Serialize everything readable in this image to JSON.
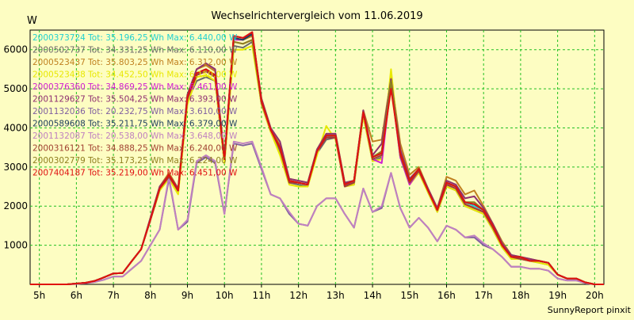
{
  "chart_data": {
    "type": "line",
    "title": "Wechselrichtervergleich vom 11.06.2019",
    "ylabel": "W",
    "footer": "SunnyReport pinxit",
    "x_ticks": [
      "5h",
      "6h",
      "7h",
      "8h",
      "9h",
      "10h",
      "11h",
      "12h",
      "13h",
      "14h",
      "15h",
      "16h",
      "17h",
      "18h",
      "19h",
      "20h"
    ],
    "y_ticks": [
      1000,
      2000,
      3000,
      4000,
      5000,
      6000
    ],
    "xlim": [
      4.75,
      20.25
    ],
    "ylim": [
      0,
      6500
    ],
    "grid": true,
    "legend": "top-left",
    "x": [
      4.75,
      5,
      5.25,
      5.5,
      5.75,
      6,
      6.25,
      6.5,
      6.75,
      7,
      7.25,
      7.5,
      7.75,
      8,
      8.25,
      8.5,
      8.75,
      9,
      9.25,
      9.5,
      9.75,
      10,
      10.25,
      10.5,
      10.75,
      11,
      11.25,
      11.5,
      11.75,
      12,
      12.25,
      12.5,
      12.75,
      13,
      13.25,
      13.5,
      13.75,
      14,
      14.25,
      14.5,
      14.75,
      15,
      15.25,
      15.5,
      15.75,
      16,
      16.25,
      16.5,
      16.75,
      17,
      17.25,
      17.5,
      17.75,
      18,
      18.25,
      18.5,
      18.75,
      19,
      19.25,
      19.5,
      19.75,
      20,
      20.25
    ],
    "series": [
      {
        "name": "2000373724 Tot: 35.196,25 Wh Max: 6.440,00 W",
        "color": "#22d0d0",
        "values": [
          0,
          0,
          0,
          0,
          0,
          20,
          40,
          90,
          180,
          280,
          290,
          600,
          900,
          1650,
          2450,
          2800,
          2400,
          4800,
          5400,
          5450,
          5300,
          3200,
          6300,
          6250,
          6400,
          4700,
          3950,
          3500,
          2650,
          2600,
          2550,
          3400,
          3750,
          3800,
          2550,
          2600,
          4400,
          3200,
          3300,
          5200,
          3300,
          2600,
          2950,
          2400,
          1900,
          2600,
          2500,
          2100,
          2000,
          1900,
          1500,
          1000,
          700,
          700,
          600,
          600,
          550,
          250,
          150,
          150,
          50,
          0,
          0
        ]
      },
      {
        "name": "2000502737 Tot: 34.331,25 Wh Max: 6.110,00 W",
        "color": "#6a6a6a",
        "values": [
          0,
          0,
          0,
          0,
          0,
          20,
          40,
          90,
          180,
          280,
          290,
          600,
          900,
          1650,
          2400,
          2750,
          2350,
          4700,
          5200,
          5300,
          5200,
          3100,
          6100,
          6050,
          6200,
          4600,
          3900,
          3400,
          2600,
          2550,
          2500,
          3350,
          3700,
          3750,
          2500,
          2550,
          4300,
          3150,
          3250,
          5100,
          3250,
          2550,
          2900,
          2350,
          1850,
          2500,
          2400,
          2000,
          1900,
          1800,
          1400,
          950,
          650,
          650,
          600,
          550,
          500,
          250,
          150,
          150,
          50,
          0,
          0
        ]
      },
      {
        "name": "2000523437 Tot: 35.803,25 Wh Max: 6.312,00 W",
        "color": "#c08020",
        "values": [
          0,
          0,
          0,
          0,
          0,
          20,
          40,
          90,
          180,
          280,
          290,
          600,
          900,
          1700,
          2500,
          2850,
          2450,
          4850,
          5500,
          5600,
          5450,
          3250,
          6300,
          6250,
          6350,
          4750,
          4000,
          3550,
          2700,
          2650,
          2600,
          3450,
          3850,
          3850,
          2600,
          2650,
          4450,
          3650,
          3700,
          5300,
          3600,
          2800,
          3000,
          2450,
          1950,
          2750,
          2650,
          2300,
          2400,
          2000,
          1550,
          1100,
          750,
          700,
          650,
          600,
          550,
          250,
          150,
          150,
          50,
          0,
          0
        ]
      },
      {
        "name": "2000523438 Tot: 34.452,50 Wh Max: 6.150,00 W",
        "color": "#e8e800",
        "values": [
          0,
          0,
          0,
          0,
          0,
          20,
          40,
          90,
          180,
          280,
          290,
          600,
          900,
          1650,
          2400,
          2700,
          2300,
          4600,
          5300,
          5350,
          5200,
          3100,
          6000,
          6000,
          6100,
          4600,
          3900,
          3300,
          2550,
          2500,
          2500,
          3300,
          4050,
          3700,
          2500,
          2550,
          4300,
          3150,
          3200,
          5500,
          3300,
          2550,
          2850,
          2350,
          1850,
          2500,
          2400,
          2000,
          1900,
          1800,
          1400,
          950,
          650,
          650,
          600,
          550,
          500,
          250,
          150,
          150,
          50,
          0,
          0
        ]
      },
      {
        "name": "2000376360 Tot: 34.869,25 Wh Max: 6.461,00 W",
        "color": "#d020d0",
        "values": [
          0,
          0,
          0,
          0,
          0,
          20,
          40,
          90,
          180,
          280,
          290,
          600,
          900,
          1650,
          2450,
          2750,
          2400,
          4750,
          5350,
          5450,
          5300,
          3200,
          6250,
          6250,
          6450,
          4650,
          3950,
          3450,
          2600,
          2600,
          2550,
          3400,
          3750,
          3750,
          2500,
          2600,
          4400,
          3200,
          3100,
          5150,
          3250,
          2550,
          2900,
          2400,
          1900,
          2550,
          2450,
          2050,
          1950,
          1850,
          1450,
          1000,
          700,
          650,
          600,
          600,
          550,
          250,
          150,
          150,
          50,
          0,
          0
        ]
      },
      {
        "name": "2001129627 Tot: 35.504,25 Wh Max: 6.393,00 W",
        "color": "#903070",
        "values": [
          0,
          0,
          0,
          0,
          0,
          20,
          40,
          90,
          180,
          280,
          290,
          600,
          900,
          1700,
          2500,
          2800,
          2450,
          4850,
          5500,
          5650,
          5500,
          3250,
          6350,
          6300,
          6400,
          4750,
          4000,
          3650,
          2700,
          2650,
          2600,
          3450,
          3850,
          3850,
          2600,
          2650,
          4450,
          3300,
          3600,
          5250,
          3450,
          2700,
          2950,
          2450,
          1950,
          2650,
          2550,
          2200,
          2250,
          1950,
          1550,
          1050,
          750,
          700,
          650,
          600,
          550,
          250,
          150,
          150,
          50,
          0,
          0
        ]
      },
      {
        "name": "2001132036 Tot: 20.232,75 Wh Max: 3.610,00 W",
        "color": "#8060a0",
        "values": [
          0,
          0,
          0,
          0,
          0,
          10,
          30,
          60,
          120,
          200,
          200,
          400,
          600,
          1000,
          1400,
          2700,
          1400,
          1600,
          3100,
          3250,
          3100,
          1800,
          3600,
          3550,
          3600,
          2950,
          2300,
          2200,
          1800,
          1550,
          1500,
          2000,
          2200,
          2200,
          1800,
          1450,
          2450,
          1850,
          1950,
          2850,
          1950,
          1450,
          1700,
          1450,
          1100,
          1500,
          1400,
          1200,
          1200,
          1000,
          900,
          700,
          450,
          450,
          400,
          400,
          350,
          150,
          100,
          100,
          30,
          0,
          0
        ]
      },
      {
        "name": "2000589608 Tot: 35.211,75 Wh Max: 6.379,00 W",
        "color": "#204060",
        "values": [
          0,
          0,
          0,
          0,
          0,
          20,
          40,
          90,
          180,
          280,
          290,
          600,
          900,
          1650,
          2450,
          2800,
          2400,
          4800,
          5400,
          5500,
          5350,
          3200,
          6300,
          6250,
          6400,
          4700,
          3950,
          3500,
          2650,
          2600,
          2550,
          3400,
          3800,
          3800,
          2550,
          2650,
          4400,
          3250,
          3400,
          5200,
          3350,
          2650,
          2950,
          2400,
          1900,
          2600,
          2500,
          2100,
          2050,
          1900,
          1500,
          1000,
          700,
          700,
          600,
          600,
          550,
          250,
          150,
          150,
          50,
          0,
          0
        ]
      },
      {
        "name": "2001132087 Tot: 20.538,00 Wh Max: 3.648,00 W",
        "color": "#c080c0",
        "values": [
          0,
          0,
          0,
          0,
          0,
          10,
          30,
          60,
          120,
          200,
          200,
          400,
          600,
          1000,
          1400,
          2750,
          1400,
          1650,
          3150,
          3300,
          3150,
          1800,
          3650,
          3600,
          3650,
          3000,
          2300,
          2200,
          1850,
          1550,
          1500,
          2000,
          2200,
          2200,
          1800,
          1450,
          2450,
          1850,
          2000,
          2850,
          1950,
          1450,
          1700,
          1450,
          1100,
          1500,
          1400,
          1200,
          1250,
          1050,
          900,
          700,
          450,
          450,
          400,
          400,
          350,
          150,
          100,
          100,
          30,
          0,
          0
        ]
      },
      {
        "name": "2000316121 Tot: 34.888,25 Wh Max: 6.240,00 W",
        "color": "#a04030",
        "values": [
          0,
          0,
          0,
          0,
          0,
          20,
          40,
          90,
          180,
          280,
          290,
          600,
          900,
          1650,
          2450,
          2750,
          2400,
          4750,
          5350,
          5450,
          5300,
          3200,
          6200,
          6150,
          6250,
          4650,
          3950,
          3450,
          2600,
          2600,
          2550,
          3400,
          3750,
          3750,
          2500,
          2600,
          4400,
          3200,
          3300,
          5150,
          3300,
          2600,
          2900,
          2400,
          1900,
          2550,
          2450,
          2050,
          1950,
          1850,
          1450,
          1000,
          700,
          650,
          600,
          600,
          550,
          250,
          150,
          150,
          50,
          0,
          0
        ]
      },
      {
        "name": "2000302779 Tot: 35.173,25 Wh Max: 6.224,00 W",
        "color": "#908020",
        "values": [
          0,
          0,
          0,
          0,
          0,
          20,
          40,
          90,
          180,
          280,
          290,
          600,
          900,
          1650,
          2450,
          2800,
          2400,
          4800,
          5400,
          5500,
          5350,
          3200,
          6200,
          6150,
          6250,
          4700,
          3950,
          3500,
          2650,
          2600,
          2550,
          3400,
          3800,
          3800,
          2550,
          2650,
          4400,
          3250,
          3400,
          5200,
          3350,
          2650,
          2950,
          2400,
          1900,
          2600,
          2500,
          2100,
          2100,
          1900,
          1500,
          1000,
          700,
          700,
          600,
          600,
          550,
          250,
          150,
          150,
          50,
          0,
          0
        ]
      },
      {
        "name": "2007404187 Tot: 35.219,00 Wh Max: 6.451,00 W",
        "color": "#e01010",
        "values": [
          0,
          0,
          0,
          0,
          0,
          20,
          40,
          90,
          180,
          280,
          290,
          600,
          900,
          1650,
          2450,
          2800,
          2400,
          4800,
          5400,
          5500,
          5350,
          3200,
          6350,
          6300,
          6450,
          4700,
          3950,
          3500,
          2650,
          2600,
          2550,
          3400,
          3800,
          3800,
          2550,
          2650,
          4400,
          3250,
          3350,
          5000,
          3350,
          2650,
          2950,
          2400,
          1900,
          2600,
          2500,
          2100,
          2050,
          1900,
          1500,
          1000,
          700,
          700,
          600,
          600,
          550,
          250,
          150,
          150,
          50,
          0,
          0
        ]
      }
    ]
  }
}
